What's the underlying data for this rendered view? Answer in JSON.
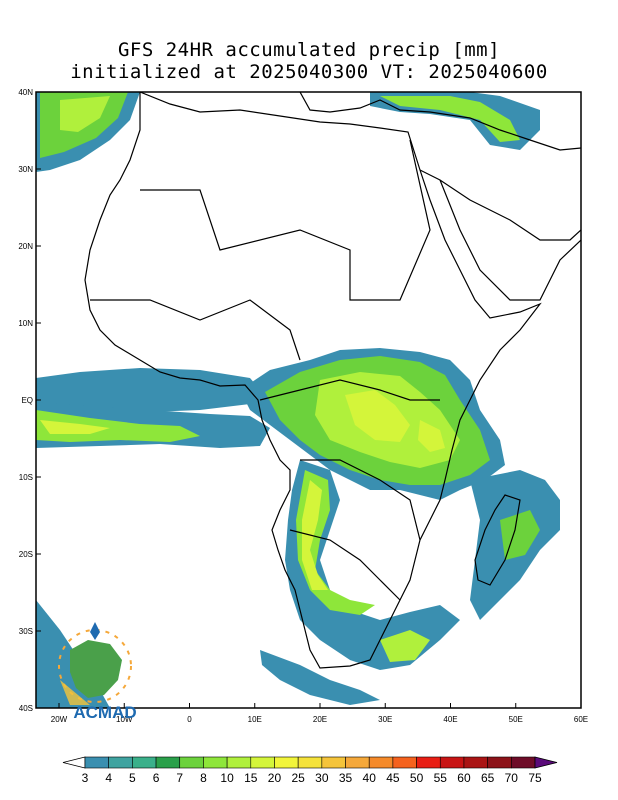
{
  "title_line1": "GFS 24HR accumulated precip [mm]",
  "title_line2": "initialized at 2025040300 VT: 2025040600",
  "lat_labels": [
    "40N",
    "30N",
    "20N",
    "10N",
    "EQ",
    "10S",
    "20S",
    "30S",
    "40S"
  ],
  "lon_labels": [
    "20W",
    "10W",
    "0",
    "10E",
    "20E",
    "30E",
    "40E",
    "50E",
    "60E"
  ],
  "extent": {
    "lon_min": -20,
    "lon_max": 60,
    "lat_min": -40,
    "lat_max": 40
  },
  "colorbar": {
    "labels": [
      "3",
      "4",
      "5",
      "6",
      "7",
      "8",
      "10",
      "15",
      "20",
      "25",
      "30",
      "35",
      "40",
      "45",
      "50",
      "55",
      "60",
      "65",
      "70",
      "75"
    ],
    "colors": [
      "#3a8fb0",
      "#3fa3a0",
      "#3ab08a",
      "#2aa04a",
      "#6cd23c",
      "#8ee63a",
      "#b0f03c",
      "#d4f53a",
      "#f2f53a",
      "#f5e23a",
      "#f5c43a",
      "#f5a83a",
      "#f58a2a",
      "#f5621e",
      "#e81e14",
      "#c81414",
      "#aa1414",
      "#8c1218",
      "#6e0c28",
      "#5a0a7a"
    ],
    "units": "mm"
  },
  "logo": {
    "text": "ACMAD",
    "text_color": "#1e6ab0"
  },
  "colors": {
    "coast": "#000000",
    "frame": "#000000",
    "light_precip": "#3a8fb0",
    "mid_precip": "#8ee63a",
    "high_precip": "#f2f53a"
  }
}
